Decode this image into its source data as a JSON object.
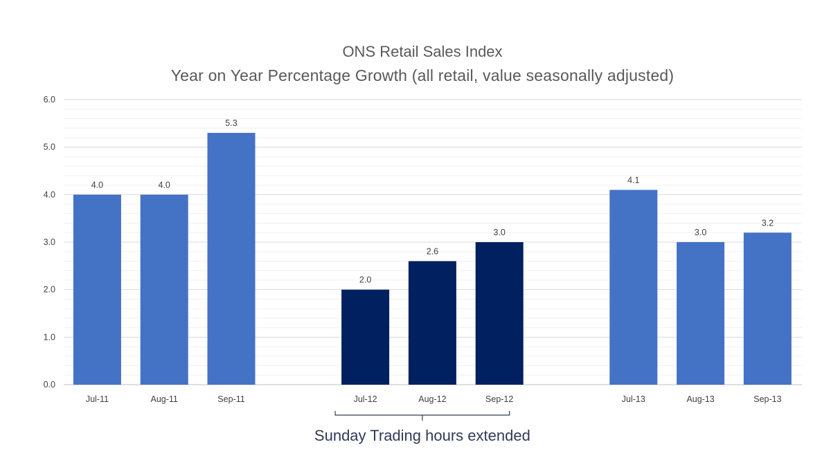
{
  "chart_data": {
    "type": "bar",
    "title": "ONS Retail Sales Index",
    "subtitle": "Year on Year Percentage Growth (all retail, value seasonally adjusted)",
    "xlabel": "",
    "ylabel": "",
    "ylim": [
      0,
      6
    ],
    "yticks": [
      "0.0",
      "1.0",
      "2.0",
      "3.0",
      "4.0",
      "5.0",
      "6.0"
    ],
    "grid": true,
    "categories": [
      "Jul-11",
      "Aug-11",
      "Sep-11",
      "",
      "Jul-12",
      "Aug-12",
      "Sep-12",
      "",
      "Jul-13",
      "Aug-13",
      "Sep-13"
    ],
    "values": [
      4.0,
      4.0,
      5.3,
      null,
      2.0,
      2.6,
      3.0,
      null,
      4.1,
      3.0,
      3.2
    ],
    "data_labels": [
      "4.0",
      "4.0",
      "5.3",
      "",
      "2.0",
      "2.6",
      "3.0",
      "",
      "4.1",
      "3.0",
      "3.2"
    ],
    "bar_colors": [
      "#4472c4",
      "#4472c4",
      "#4472c4",
      "",
      "#002060",
      "#002060",
      "#002060",
      "",
      "#4472c4",
      "#4472c4",
      "#4472c4"
    ],
    "annotation": {
      "text": "Sunday Trading hours extended",
      "spans": [
        "Jul-12",
        "Sep-12"
      ],
      "color": "#2f3b56"
    }
  },
  "colors": {
    "grid_major": "#d9d9d9",
    "grid_minor": "#f0f0f0",
    "axis": "#bfbfbf",
    "text": "#595959"
  }
}
